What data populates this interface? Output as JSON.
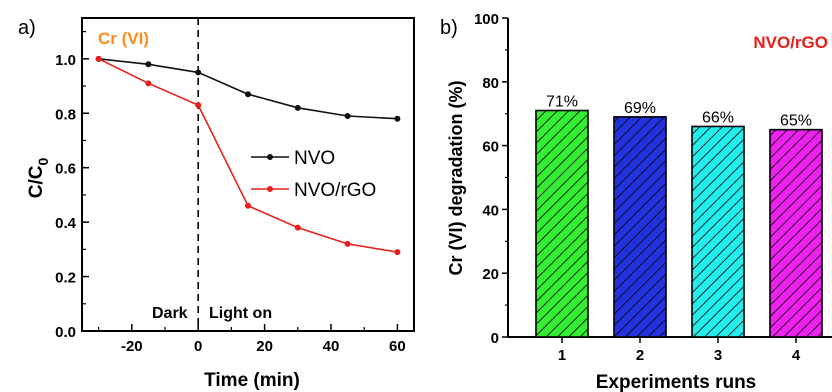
{
  "chart_data": [
    {
      "panel_label": "a)",
      "type": "line",
      "annotation": "Cr (VI)",
      "annotation_color": "#ff8c1a",
      "xlabel": "Time (min)",
      "ylabel": "C/C",
      "ylabel_sub": "0",
      "xlim": [
        -35,
        65
      ],
      "ylim": [
        0.0,
        1.15
      ],
      "xticks": [
        -20,
        0,
        20,
        40,
        60
      ],
      "yticks": [
        0.0,
        0.2,
        0.4,
        0.6,
        0.8,
        1.0
      ],
      "ytick_labels": [
        "0.0",
        "0.2",
        "0.4",
        "0.6",
        "0.8",
        "1.0"
      ],
      "divider_x": 0,
      "region_labels": [
        "Dark",
        "Light on"
      ],
      "legend_position": "center-right",
      "series": [
        {
          "name": "NVO",
          "color": "#111111",
          "x": [
            -30,
            -15,
            0,
            15,
            30,
            45,
            60
          ],
          "y": [
            1.0,
            0.98,
            0.95,
            0.87,
            0.82,
            0.79,
            0.78
          ]
        },
        {
          "name": "NVO/rGO",
          "color": "#e8201c",
          "x": [
            -30,
            -15,
            0,
            15,
            30,
            45,
            60
          ],
          "y": [
            1.0,
            0.91,
            0.83,
            0.46,
            0.38,
            0.32,
            0.29
          ]
        }
      ]
    },
    {
      "panel_label": "b)",
      "type": "bar",
      "annotation": "NVO/rGO",
      "annotation_color": "#e8201c",
      "xlabel": "Experiments runs",
      "ylabel": "Cr (VI) degradation (%)",
      "ylim": [
        0,
        100
      ],
      "yticks": [
        0,
        20,
        40,
        60,
        80,
        100
      ],
      "categories": [
        "1",
        "2",
        "3",
        "4"
      ],
      "values": [
        71,
        69,
        66,
        65
      ],
      "value_labels": [
        "71%",
        "69%",
        "66%",
        "65%"
      ],
      "bar_colors": [
        "#33ee33",
        "#2233dd",
        "#22eeee",
        "#ee22ee"
      ],
      "hatch": "diagonal"
    }
  ]
}
